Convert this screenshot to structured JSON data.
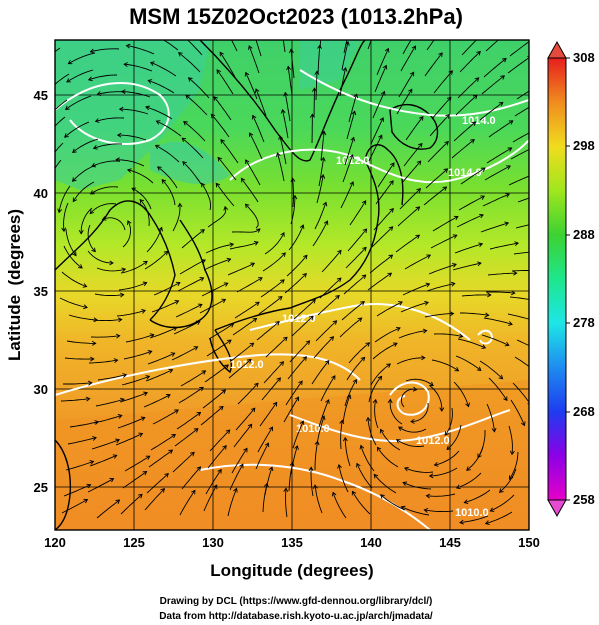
{
  "title": "MSM 15Z02Oct2023 (1013.2hPa)",
  "x_axis": {
    "label": "Longitude (degrees)",
    "ticks": [
      "120",
      "125",
      "130",
      "135",
      "140",
      "145",
      "150"
    ]
  },
  "y_axis": {
    "label": "Latitude  (degrees)",
    "ticks": [
      "25",
      "30",
      "35",
      "40",
      "45"
    ]
  },
  "colorbar": {
    "ticks": [
      "308",
      "298",
      "288",
      "278",
      "268",
      "258"
    ],
    "min": 258,
    "max": 308,
    "colors": [
      "#e600c8",
      "#a000e6",
      "#3c1ee6",
      "#1e5af0",
      "#1ea0f0",
      "#1ee6e6",
      "#1ee696",
      "#32d232",
      "#78e61e",
      "#c8f01e",
      "#f0e61e",
      "#f0b41e",
      "#f08c1e",
      "#f05a1e",
      "#f02d1e",
      "#e61e1e"
    ]
  },
  "map": {
    "lon_range": [
      120,
      150
    ],
    "lat_range": [
      23,
      48
    ],
    "contour_labels": [
      "1014.0",
      "1012.0",
      "1014.0",
      "1012.0",
      "1012.0",
      "1010.0",
      "1012.0",
      "1010.0"
    ]
  },
  "credits": {
    "line1": "Drawing by DCL (https://www.gfd-dennou.org/library/dcl/)",
    "line2": "Data from http://database.rish.kyoto-u.ac.jp/arch/jmadata/"
  }
}
